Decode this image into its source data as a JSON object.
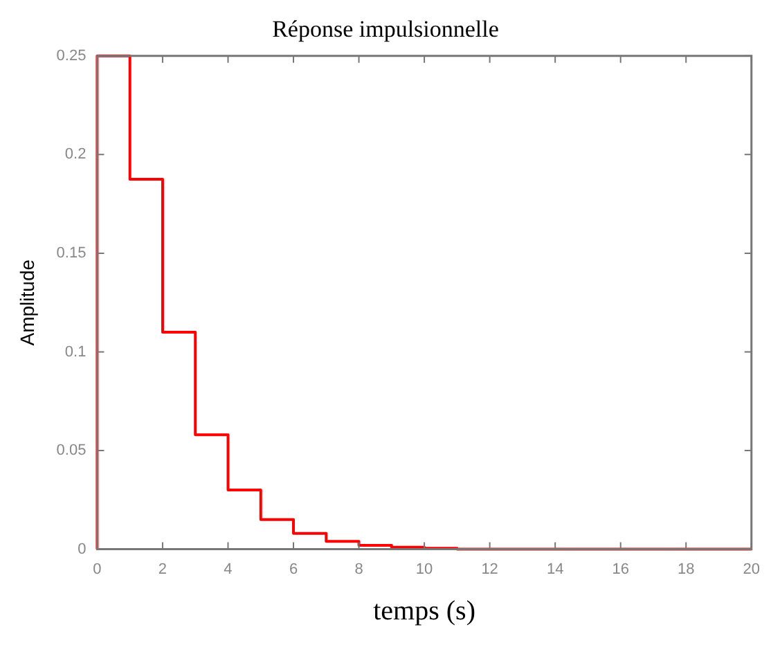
{
  "chart_data": {
    "type": "step",
    "title": "Réponse impulsionnelle",
    "xlabel": "temps (s)",
    "ylabel": "Amplitude",
    "x": [
      0,
      1,
      2,
      3,
      4,
      5,
      6,
      7,
      8,
      9,
      10,
      11,
      12,
      13,
      14,
      15,
      16,
      17,
      18,
      19,
      20
    ],
    "series": [
      {
        "color": "#ff0000",
        "values": [
          0,
          0.25,
          0.1875,
          0.11,
          0.058,
          0.03,
          0.015,
          0.008,
          0.004,
          0.002,
          0.001,
          0.0005,
          0,
          0,
          0,
          0,
          0,
          0,
          0,
          0,
          0
        ]
      }
    ],
    "xlim": [
      0,
      20
    ],
    "xticks": [
      0,
      2,
      4,
      6,
      8,
      10,
      12,
      14,
      16,
      18,
      20
    ],
    "ylim": [
      0,
      0.25
    ],
    "yticks": [
      0,
      0.05,
      0.1,
      0.15,
      0.2,
      0.25
    ],
    "grid": false,
    "legend": false
  }
}
